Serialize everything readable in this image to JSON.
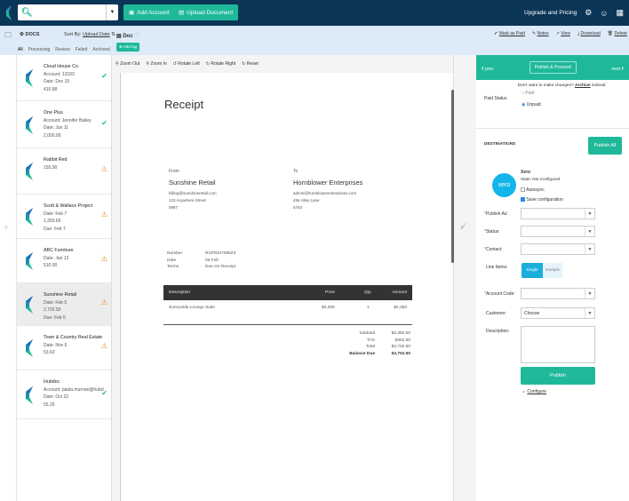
{
  "topbar": {
    "search_placeholder": "",
    "add_account": "Add Account",
    "upload_document": "Upload Document",
    "upgrade": "Upgrade and Pricing"
  },
  "subbar": {
    "docs_label": "DOCS",
    "sort_by": "Sort By:",
    "sort_value": "Upload Date",
    "doc_label": "Doc",
    "add_tag": "Add tag",
    "actions": [
      "Mark as Paid",
      "Notes",
      "View",
      "Download",
      "Delete"
    ]
  },
  "tabs": [
    "All",
    "Processing",
    "Review",
    "Failed",
    "Archived"
  ],
  "docs": [
    {
      "title": "Cloud House Co.",
      "lines": [
        "Account: 13333",
        "Date: Dec 15",
        "410.88"
      ],
      "status": "ok"
    },
    {
      "title": "One Plus",
      "lines": [
        "Account: Jennifer Bailey",
        "Date: Jun 11",
        "2,000.00"
      ],
      "status": "ok"
    },
    {
      "title": "Rabbit Red",
      "lines": [
        "155.00"
      ],
      "status": "warn"
    },
    {
      "title": "Scott & Wallace Project",
      "lines": [
        "Date: Feb 7",
        "1,350.65",
        "Due: Feb 7"
      ],
      "status": "warn"
    },
    {
      "title": "ABC Furniture",
      "lines": [
        "Date: Jan 12",
        "510.00"
      ],
      "status": "warn"
    },
    {
      "title": "Sunshine Retail",
      "lines": [
        "Date: Feb 5",
        "2,702.50",
        "Due: Feb 5"
      ],
      "status": "warn",
      "selected": true
    },
    {
      "title": "Town & Country Real Estate",
      "lines": [
        "Date: Nov 6",
        "53.63"
      ],
      "status": "warn"
    },
    {
      "title": "Hubdoc",
      "lines": [
        "Account: paula.murnan@hubd",
        "Date: Oct 22",
        "55.25"
      ],
      "status": "ok"
    }
  ],
  "viewer": {
    "tools": [
      "Zoom Out",
      "Zoom In",
      "Rotate Left",
      "Rotate Right",
      "Reset"
    ]
  },
  "receipt": {
    "title": "Receipt",
    "from_label": "From",
    "from_name": "Sunshine Retail",
    "from_lines": [
      "billing@sunshineretail.com",
      "123 Anywhere Street",
      "0987"
    ],
    "to_label": "To",
    "to_name": "Hornblower Enterprises",
    "to_lines": [
      "admin@hornblowerenterprises.com",
      "456 Alley Lane",
      "5763"
    ],
    "meta": [
      [
        "Number",
        "RCP834708823"
      ],
      [
        "Date",
        "05 Feb"
      ],
      [
        "Terms",
        "Due On Receipt"
      ]
    ],
    "headers": [
      "Description",
      "Price",
      "Qty",
      "Amount"
    ],
    "rows": [
      [
        "Sunnyside Lounge Suite",
        "$2,350",
        "1",
        "$2,350"
      ]
    ],
    "totals": [
      [
        "Subtotal",
        "$2,350.00"
      ],
      [
        "TAX",
        "$352.50"
      ],
      [
        "Total",
        "$2,702.50"
      ],
      [
        "Balance Due",
        "$2,702.50"
      ]
    ]
  },
  "right": {
    "prev": "prev",
    "publish_proceed": "Publish & Proceed",
    "next": "next",
    "archive_text": "Don't want to make changes?",
    "archive_link": "Archive",
    "archive_suffix": "instead",
    "paid_status_label": "Paid Status",
    "paid_option": "Paid",
    "unpaid_option": "Unpaid",
    "destinations": "DESTINATIONS",
    "publish_all": "Publish All",
    "xero_name": "Xero",
    "xero_logo": "xero",
    "xero_state": "State: Not Configured",
    "autosync": "Autosync",
    "save_config": "Save configuration",
    "publish_as": "Publish As:",
    "status": "Status:",
    "contact": "Contact:",
    "line_items": "Line Items:",
    "single": "Single",
    "multiple": "Multiple",
    "account_code": "Account Code:",
    "customer": "Customer:",
    "customer_value": "Choose",
    "description": "Description:",
    "publish": "Publish",
    "configure": "Configure"
  }
}
